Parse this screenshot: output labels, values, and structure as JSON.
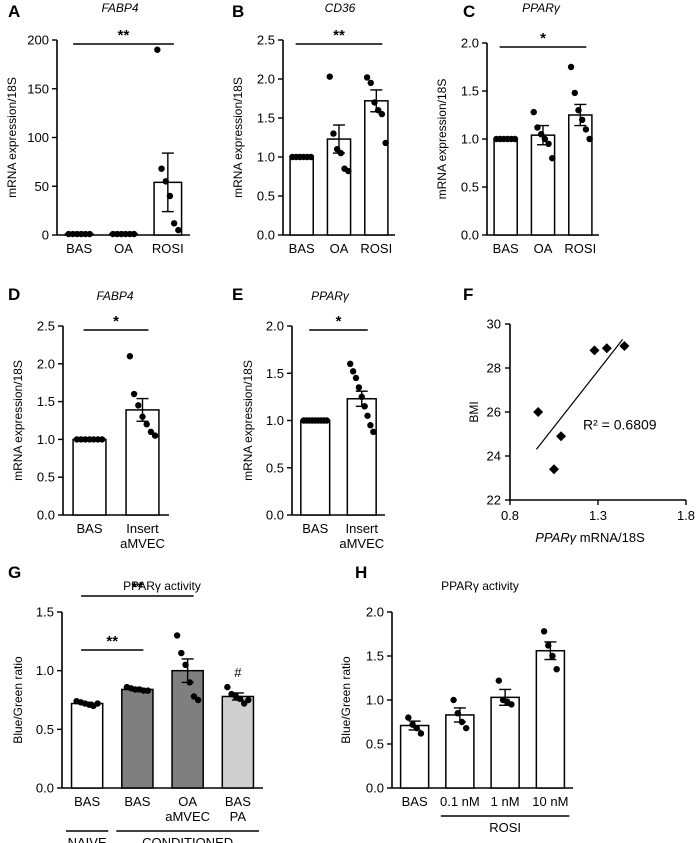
{
  "panels": [
    {
      "id": "A",
      "label": "A",
      "title": "FABP4",
      "title_italic": true,
      "ylabel": "mRNA expression/18S",
      "ylim": [
        0,
        200
      ],
      "yticks": [
        "0",
        "50",
        "100",
        "150",
        "200"
      ],
      "categories": [
        [
          "BAS"
        ],
        [
          "OA"
        ],
        [
          "ROSI"
        ]
      ],
      "bars": [
        {
          "value": 1.0,
          "err": 0.0,
          "fill": "#ffffff"
        },
        {
          "value": 1.0,
          "err": 0.0,
          "fill": "#ffffff"
        },
        {
          "value": 54,
          "err": 30,
          "fill": "#ffffff"
        }
      ],
      "points": [
        [
          1,
          1,
          1,
          1,
          1,
          1
        ],
        [
          1,
          1,
          1,
          1,
          1,
          1
        ],
        [
          190,
          68,
          55,
          40,
          12,
          5
        ]
      ],
      "sig": [
        {
          "from": 0,
          "to": 2,
          "text": "**",
          "level": 1
        }
      ]
    },
    {
      "id": "B",
      "label": "B",
      "title": "CD36",
      "title_italic": true,
      "ylabel": "mRNA expression/18S",
      "ylim": [
        0,
        2.5
      ],
      "yticks": [
        "0.0",
        "0.5",
        "1.0",
        "1.5",
        "2.0",
        "2.5"
      ],
      "categories": [
        [
          "BAS"
        ],
        [
          "OA"
        ],
        [
          "ROSI"
        ]
      ],
      "bars": [
        {
          "value": 1.0,
          "err": 0.0,
          "fill": "#ffffff"
        },
        {
          "value": 1.23,
          "err": 0.18,
          "fill": "#ffffff"
        },
        {
          "value": 1.72,
          "err": 0.14,
          "fill": "#ffffff"
        }
      ],
      "points": [
        [
          1,
          1,
          1,
          1,
          1,
          1
        ],
        [
          2.03,
          1.3,
          1.1,
          1.05,
          0.85,
          0.82
        ],
        [
          2.02,
          1.95,
          1.7,
          1.6,
          1.55,
          1.18
        ]
      ],
      "sig": [
        {
          "from": 0,
          "to": 2,
          "text": "**",
          "level": 1
        }
      ]
    },
    {
      "id": "C",
      "label": "C",
      "title": "PPARγ",
      "title_italic": true,
      "ylabel": "mRNA expression/18S",
      "ylim": [
        0,
        2
      ],
      "yticks": [
        "0.0",
        "0.5",
        "1.0",
        "1.5",
        "2.0"
      ],
      "categories": [
        [
          "BAS"
        ],
        [
          "OA"
        ],
        [
          "ROSI"
        ]
      ],
      "bars": [
        {
          "value": 1.0,
          "err": 0.0,
          "fill": "#ffffff"
        },
        {
          "value": 1.04,
          "err": 0.1,
          "fill": "#ffffff"
        },
        {
          "value": 1.25,
          "err": 0.11,
          "fill": "#ffffff"
        }
      ],
      "points": [
        [
          1,
          1,
          1,
          1,
          1,
          1
        ],
        [
          1.28,
          1.12,
          1.05,
          1.0,
          0.95,
          0.8
        ],
        [
          1.75,
          1.48,
          1.3,
          1.2,
          1.1,
          1.0
        ]
      ],
      "sig": [
        {
          "from": 0,
          "to": 2,
          "text": "*",
          "level": 1
        }
      ]
    },
    {
      "id": "D",
      "label": "D",
      "title": "FABP4",
      "title_italic": true,
      "ylabel": "mRNA expression/18S",
      "ylim": [
        0,
        2.5
      ],
      "yticks": [
        "0.0",
        "0.5",
        "1.0",
        "1.5",
        "2.0",
        "2.5"
      ],
      "categories": [
        [
          "BAS"
        ],
        [
          "Insert",
          "aMVEC"
        ]
      ],
      "bars": [
        {
          "value": 1.0,
          "err": 0.0,
          "fill": "#ffffff"
        },
        {
          "value": 1.39,
          "err": 0.15,
          "fill": "#ffffff"
        }
      ],
      "points": [
        [
          1,
          1,
          1,
          1,
          1,
          1,
          1
        ],
        [
          2.1,
          1.6,
          1.45,
          1.3,
          1.2,
          1.1,
          1.05
        ]
      ],
      "sig": [
        {
          "from": 0,
          "to": 1,
          "text": "*",
          "level": 1
        }
      ]
    },
    {
      "id": "E",
      "label": "E",
      "title": "PPARγ",
      "title_italic": true,
      "ylabel": "mRNA expression/18S",
      "ylim": [
        0,
        2
      ],
      "yticks": [
        "0.0",
        "0.5",
        "1.0",
        "1.5",
        "2.0"
      ],
      "categories": [
        [
          "BAS"
        ],
        [
          "Insert",
          "aMVEC"
        ]
      ],
      "bars": [
        {
          "value": 1.0,
          "err": 0.0,
          "fill": "#ffffff"
        },
        {
          "value": 1.23,
          "err": 0.08,
          "fill": "#ffffff"
        }
      ],
      "points": [
        [
          1,
          1,
          1,
          1,
          1,
          1,
          1,
          1,
          1
        ],
        [
          1.6,
          1.52,
          1.45,
          1.35,
          1.25,
          1.15,
          1.05,
          0.95,
          0.88
        ]
      ],
      "sig": [
        {
          "from": 0,
          "to": 1,
          "text": "*",
          "level": 1
        }
      ]
    },
    {
      "id": "G",
      "label": "G",
      "title": "PPARγ activity",
      "title_italic": false,
      "ylabel": "Blue/Green ratio",
      "ylim": [
        0,
        1.5
      ],
      "yticks": [
        "0.0",
        "0.5",
        "1.0",
        "1.5"
      ],
      "categories": [
        [
          "BAS"
        ],
        [
          "BAS"
        ],
        [
          "OA",
          "aMVEC"
        ],
        [
          "BAS",
          "PA"
        ]
      ],
      "bars": [
        {
          "value": 0.72,
          "err": 0.01,
          "fill": "#ffffff"
        },
        {
          "value": 0.84,
          "err": 0.01,
          "fill": "#7f7f7f"
        },
        {
          "value": 1.0,
          "err": 0.1,
          "fill": "#7f7f7f"
        },
        {
          "value": 0.78,
          "err": 0.03,
          "fill": "#cfcfcf"
        }
      ],
      "points": [
        [
          0.74,
          0.73,
          0.72,
          0.71,
          0.7,
          0.72
        ],
        [
          0.86,
          0.85,
          0.84,
          0.84,
          0.83,
          0.83
        ],
        [
          1.3,
          1.15,
          1.05,
          0.9,
          0.78,
          0.75
        ],
        [
          0.86,
          0.8,
          0.78,
          0.76,
          0.72,
          0.75
        ]
      ],
      "sig": [
        {
          "from": 0,
          "to": 1,
          "text": "**",
          "level": 1
        },
        {
          "from": 0,
          "to": 2,
          "text": "**",
          "level": 2
        }
      ],
      "mark": {
        "bar": 3,
        "text": "#"
      },
      "groups": [
        {
          "from": 0,
          "to": 0,
          "label": "NAIVE"
        },
        {
          "from": 1,
          "to": 3,
          "label": "CONDITIONED"
        }
      ]
    },
    {
      "id": "H",
      "label": "H",
      "title": "PPARγ activity",
      "title_italic": false,
      "ylabel": "Blue/Green ratio",
      "ylim": [
        0,
        2
      ],
      "yticks": [
        "0.0",
        "0.5",
        "1.0",
        "1.5",
        "2.0"
      ],
      "categories": [
        [
          "BAS"
        ],
        [
          "0.1 nM"
        ],
        [
          "1 nM"
        ],
        [
          "10 nM"
        ]
      ],
      "bars": [
        {
          "value": 0.71,
          "err": 0.05,
          "fill": "#ffffff"
        },
        {
          "value": 0.83,
          "err": 0.08,
          "fill": "#ffffff"
        },
        {
          "value": 1.03,
          "err": 0.09,
          "fill": "#ffffff"
        },
        {
          "value": 1.56,
          "err": 0.1,
          "fill": "#ffffff"
        }
      ],
      "points": [
        [
          0.8,
          0.72,
          0.68,
          0.62
        ],
        [
          1.0,
          0.85,
          0.75,
          0.68
        ],
        [
          1.22,
          1.0,
          0.98,
          0.95
        ],
        [
          1.78,
          1.62,
          1.5,
          1.35
        ]
      ],
      "sig": [],
      "groups": [
        {
          "from": 1,
          "to": 3,
          "label": "ROSI"
        }
      ]
    }
  ],
  "scatter": {
    "label": "F",
    "xlabel_italic": "PPARγ",
    "xlabel_rest": " mRNA/18S",
    "ylabel": "BMI",
    "xlim": [
      0.8,
      1.8
    ],
    "ylim": [
      22,
      30
    ],
    "xticks": [
      "0.8",
      "1.3",
      "1.8"
    ],
    "yticks": [
      "22",
      "24",
      "26",
      "28",
      "30"
    ],
    "annotation": "R² = 0.6809"
  },
  "chart_data": [
    {
      "panel": "A",
      "type": "bar",
      "title": "FABP4",
      "ylabel": "mRNA expression/18S",
      "categories": [
        "BAS",
        "OA",
        "ROSI"
      ],
      "values": [
        1.0,
        1.0,
        54
      ],
      "ylim": [
        0,
        200
      ]
    },
    {
      "panel": "B",
      "type": "bar",
      "title": "CD36",
      "ylabel": "mRNA expression/18S",
      "categories": [
        "BAS",
        "OA",
        "ROSI"
      ],
      "values": [
        1.0,
        1.23,
        1.72
      ],
      "ylim": [
        0,
        2.5
      ]
    },
    {
      "panel": "C",
      "type": "bar",
      "title": "PPARγ",
      "ylabel": "mRNA expression/18S",
      "categories": [
        "BAS",
        "OA",
        "ROSI"
      ],
      "values": [
        1.0,
        1.04,
        1.25
      ],
      "ylim": [
        0,
        2
      ]
    },
    {
      "panel": "D",
      "type": "bar",
      "title": "FABP4",
      "ylabel": "mRNA expression/18S",
      "categories": [
        "BAS",
        "Insert aMVEC"
      ],
      "values": [
        1.0,
        1.39
      ],
      "ylim": [
        0,
        2.5
      ]
    },
    {
      "panel": "E",
      "type": "bar",
      "title": "PPARγ",
      "ylabel": "mRNA expression/18S",
      "categories": [
        "BAS",
        "Insert aMVEC"
      ],
      "values": [
        1.0,
        1.23
      ],
      "ylim": [
        0,
        2
      ]
    },
    {
      "panel": "F",
      "type": "scatter",
      "xlabel": "PPARγ mRNA/18S",
      "ylabel": "BMI",
      "x": [
        0.96,
        1.05,
        1.09,
        1.28,
        1.35,
        1.45
      ],
      "y": [
        26.0,
        23.4,
        24.9,
        28.8,
        28.9,
        29.0
      ],
      "xlim": [
        0.8,
        1.8
      ],
      "ylim": [
        22,
        30
      ],
      "trendline": {
        "x": [
          0.95,
          1.44
        ],
        "y": [
          24.3,
          29.3
        ]
      }
    },
    {
      "panel": "G",
      "type": "bar",
      "title": "PPARγ activity",
      "ylabel": "Blue/Green ratio",
      "categories": [
        "BAS",
        "BAS",
        "OA aMVEC",
        "BAS PA"
      ],
      "values": [
        0.72,
        0.84,
        1.0,
        0.78
      ],
      "ylim": [
        0,
        1.5
      ]
    },
    {
      "panel": "H",
      "type": "bar",
      "title": "PPARγ activity",
      "ylabel": "Blue/Green ratio",
      "categories": [
        "BAS",
        "0.1 nM",
        "1 nM",
        "10 nM"
      ],
      "values": [
        0.71,
        0.83,
        1.03,
        1.56
      ],
      "ylim": [
        0,
        2
      ]
    }
  ]
}
